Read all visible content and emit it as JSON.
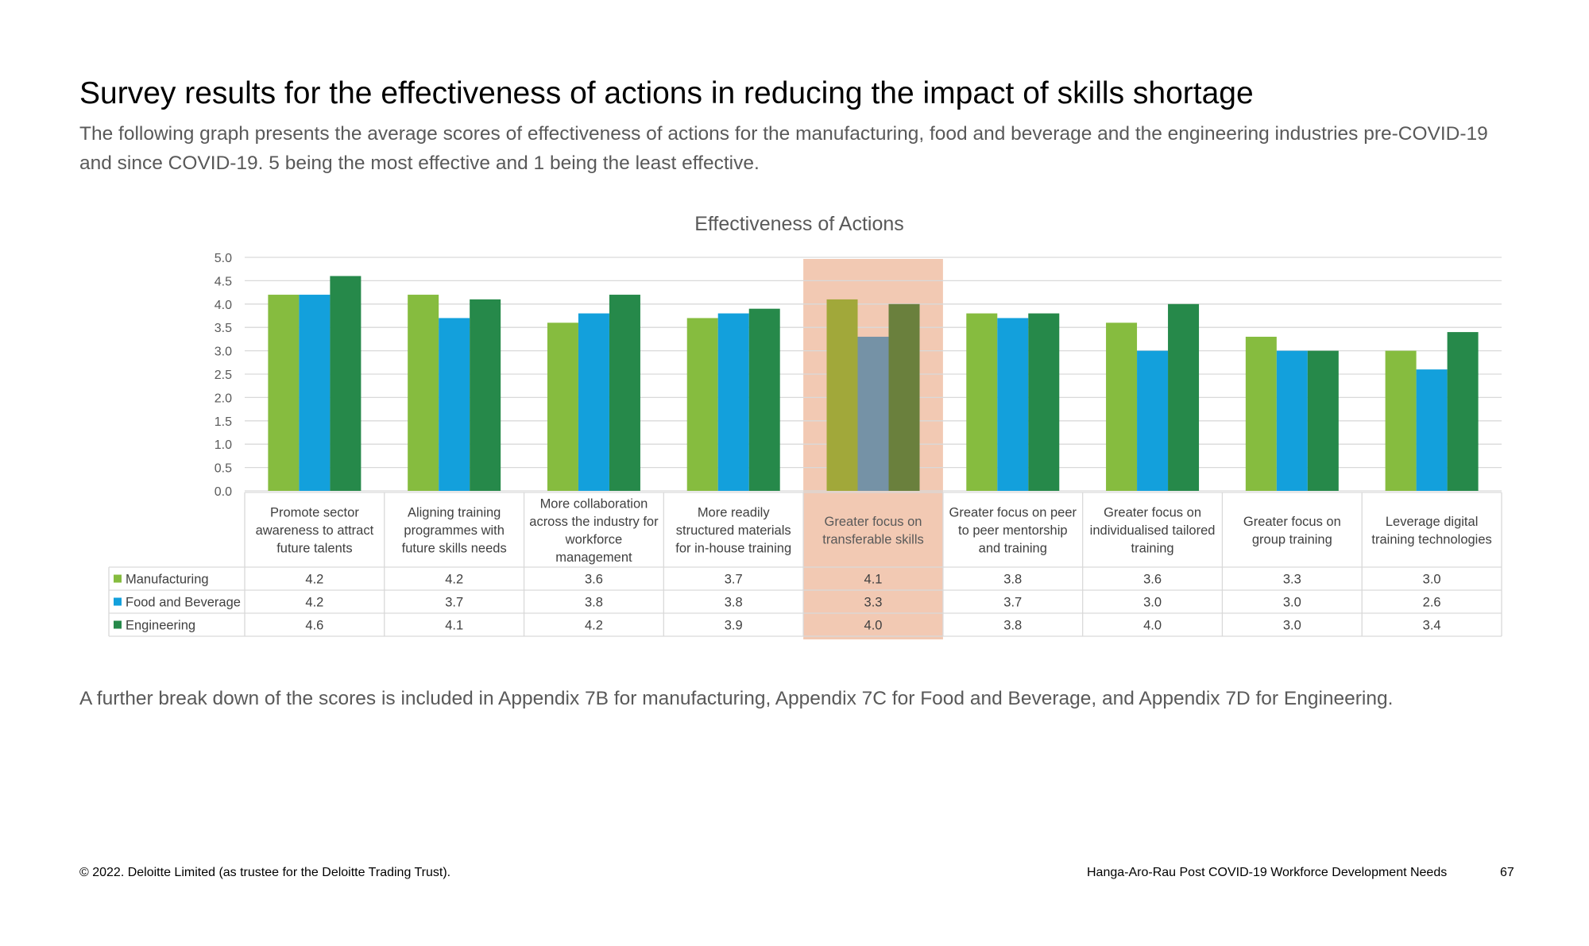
{
  "page": {
    "title": "Survey results for the effectiveness of actions in reducing the impact of skills shortage",
    "subtitle": "The following graph presents the average scores of effectiveness of actions for the manufacturing, food and beverage and the engineering industries pre-COVID-19 and since COVID-19. 5 being the most effective and 1 being the least effective.",
    "note": "A further break down of the scores is included in Appendix 7B for manufacturing, Appendix 7C for Food and Beverage, and Appendix 7D for Engineering.",
    "footer_left": "© 2022. Deloitte Limited (as trustee for the Deloitte Trading Trust).",
    "footer_right": "Hanga-Aro-Rau Post COVID-19 Workforce Development Needs",
    "page_number": "67"
  },
  "chart_data": {
    "type": "bar",
    "title": "Effectiveness of Actions",
    "ylim": [
      0,
      5
    ],
    "yticks": [
      "0.0",
      "0.5",
      "1.0",
      "1.5",
      "2.0",
      "2.5",
      "3.0",
      "3.5",
      "4.0",
      "4.5",
      "5.0"
    ],
    "grid": true,
    "legend": "data-table",
    "highlight_category_index": 4,
    "highlight_color": "#f2c9b3",
    "categories": [
      [
        "Promote sector",
        "awareness to attract",
        "future talents"
      ],
      [
        "Aligning training",
        "programmes with",
        "future skills needs"
      ],
      [
        "More collaboration",
        "across the industry for",
        "workforce",
        "management"
      ],
      [
        "More readily",
        "structured materials",
        "for in-house training"
      ],
      [
        "Greater focus on",
        "transferable skills"
      ],
      [
        "Greater focus on peer",
        "to peer mentorship",
        "and training"
      ],
      [
        "Greater focus on",
        "individualised tailored",
        "training"
      ],
      [
        "Greater focus on",
        "group training"
      ],
      [
        "Leverage digital",
        "training technologies"
      ]
    ],
    "series": [
      {
        "name": "Manufacturing",
        "color": "#86bc3f",
        "highlight_color": "#a1a83a",
        "values": [
          4.2,
          4.2,
          3.6,
          3.7,
          4.1,
          3.8,
          3.6,
          3.3,
          3.0
        ],
        "labels": [
          "4.2",
          "4.2",
          "3.6",
          "3.7",
          "4.1",
          "3.8",
          "3.6",
          "3.3",
          "3.0"
        ]
      },
      {
        "name": "Food and Beverage",
        "color": "#13a0dc",
        "highlight_color": "#7592a6",
        "values": [
          4.2,
          3.7,
          3.8,
          3.8,
          3.3,
          3.7,
          3.0,
          3.0,
          2.6
        ],
        "labels": [
          "4.2",
          "3.7",
          "3.8",
          "3.8",
          "3.3",
          "3.7",
          "3.0",
          "3.0",
          "2.6"
        ]
      },
      {
        "name": "Engineering",
        "color": "#26894a",
        "highlight_color": "#6a803d",
        "values": [
          4.6,
          4.1,
          4.2,
          3.9,
          4.0,
          3.8,
          4.0,
          3.0,
          3.4
        ],
        "labels": [
          "4.6",
          "4.1",
          "4.2",
          "3.9",
          "4.0",
          "3.8",
          "4.0",
          "3.0",
          "3.4"
        ]
      }
    ]
  }
}
